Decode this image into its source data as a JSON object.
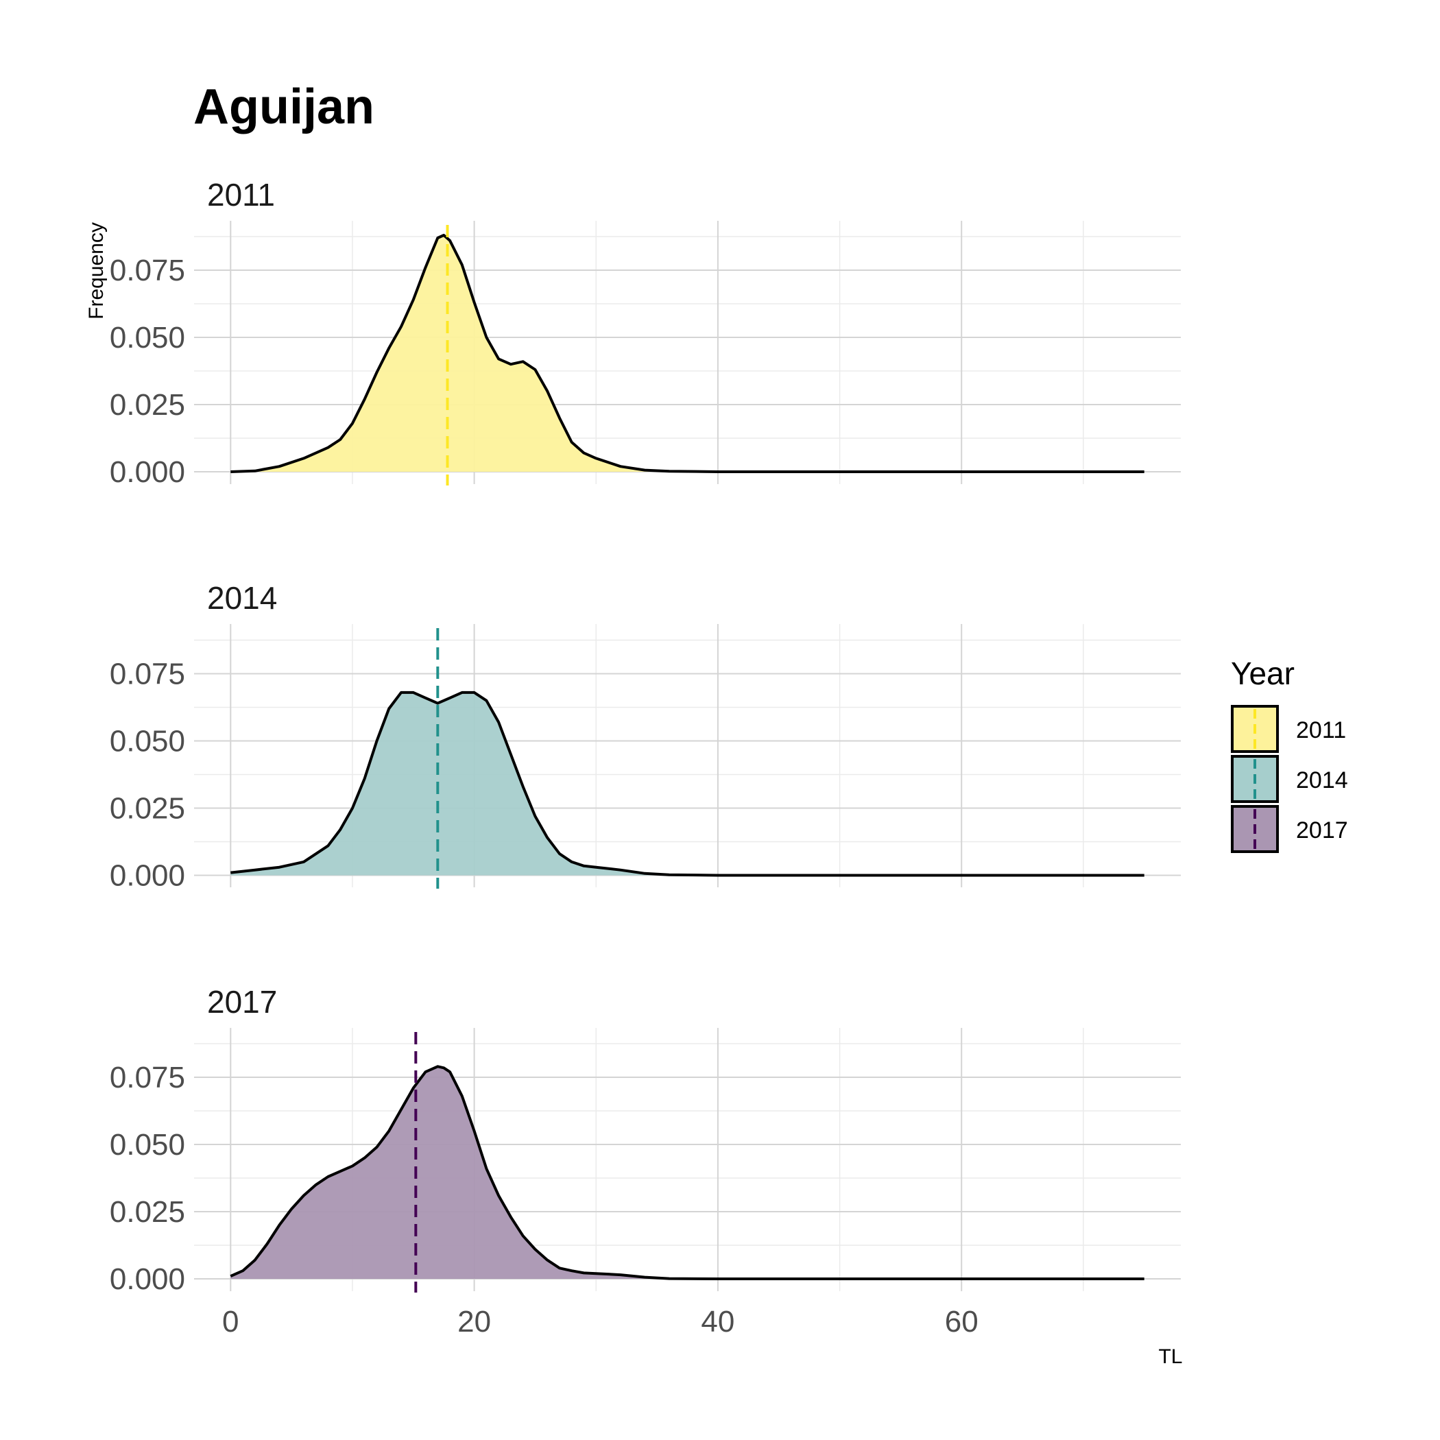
{
  "chart_data": {
    "type": "area",
    "title": "Aguijan",
    "xlabel": "TL",
    "ylabel": "Frequency",
    "xlim": [
      -3,
      78
    ],
    "ylim": [
      0,
      0.092
    ],
    "x_ticks": [
      0,
      20,
      40,
      60
    ],
    "x_tick_labels": [
      "0",
      "20",
      "40",
      "60"
    ],
    "y_ticks": [
      0,
      0.025,
      0.05,
      0.075
    ],
    "y_tick_labels": [
      "0.000",
      "0.025",
      "0.050",
      "0.075"
    ],
    "grid": true,
    "legend": {
      "title": "Year",
      "position": "right"
    },
    "series": [
      {
        "name": "2011",
        "color": "#FDE725",
        "fill": "#FDF29B",
        "mean_line": 17.8,
        "x": [
          0,
          2,
          4,
          6,
          8,
          9,
          10,
          11,
          12,
          13,
          14,
          15,
          16,
          17,
          17.5,
          18,
          19,
          20,
          21,
          22,
          23,
          24,
          25,
          26,
          27,
          28,
          29,
          30,
          32,
          34,
          36,
          40,
          50,
          60,
          75
        ],
        "values": [
          0,
          0.0003,
          0.002,
          0.005,
          0.009,
          0.012,
          0.018,
          0.027,
          0.037,
          0.046,
          0.054,
          0.064,
          0.076,
          0.087,
          0.088,
          0.086,
          0.077,
          0.063,
          0.05,
          0.042,
          0.04,
          0.041,
          0.038,
          0.03,
          0.02,
          0.011,
          0.007,
          0.005,
          0.002,
          0.0006,
          0.0002,
          0,
          0,
          0,
          0
        ]
      },
      {
        "name": "2014",
        "color": "#21918C",
        "fill": "#A6CECC",
        "mean_line": 17.0,
        "x": [
          0,
          2,
          4,
          6,
          8,
          9,
          10,
          11,
          12,
          13,
          14,
          15,
          16,
          17,
          18,
          19,
          20,
          21,
          22,
          23,
          24,
          25,
          26,
          27,
          28,
          29,
          30,
          32,
          34,
          36,
          40,
          50,
          60,
          75
        ],
        "values": [
          0.001,
          0.002,
          0.003,
          0.005,
          0.011,
          0.017,
          0.025,
          0.036,
          0.05,
          0.062,
          0.068,
          0.068,
          0.066,
          0.064,
          0.066,
          0.068,
          0.068,
          0.065,
          0.057,
          0.045,
          0.033,
          0.022,
          0.014,
          0.008,
          0.005,
          0.0035,
          0.003,
          0.002,
          0.0007,
          0.0002,
          0,
          0,
          0,
          0
        ]
      },
      {
        "name": "2017",
        "color": "#440154",
        "fill": "#AA96B2",
        "mean_line": 15.2,
        "x": [
          0,
          1,
          2,
          3,
          4,
          5,
          6,
          7,
          8,
          9,
          10,
          11,
          12,
          13,
          14,
          15,
          16,
          17,
          17.5,
          18,
          19,
          20,
          21,
          22,
          23,
          24,
          25,
          26,
          27,
          28,
          29,
          30,
          32,
          34,
          36,
          40,
          50,
          60,
          75
        ],
        "values": [
          0.001,
          0.003,
          0.007,
          0.013,
          0.02,
          0.026,
          0.031,
          0.035,
          0.038,
          0.04,
          0.042,
          0.045,
          0.049,
          0.055,
          0.063,
          0.071,
          0.077,
          0.079,
          0.0785,
          0.077,
          0.068,
          0.055,
          0.041,
          0.031,
          0.023,
          0.016,
          0.011,
          0.007,
          0.004,
          0.003,
          0.0022,
          0.002,
          0.0015,
          0.0006,
          0.0001,
          0,
          0,
          0,
          0
        ]
      }
    ]
  }
}
